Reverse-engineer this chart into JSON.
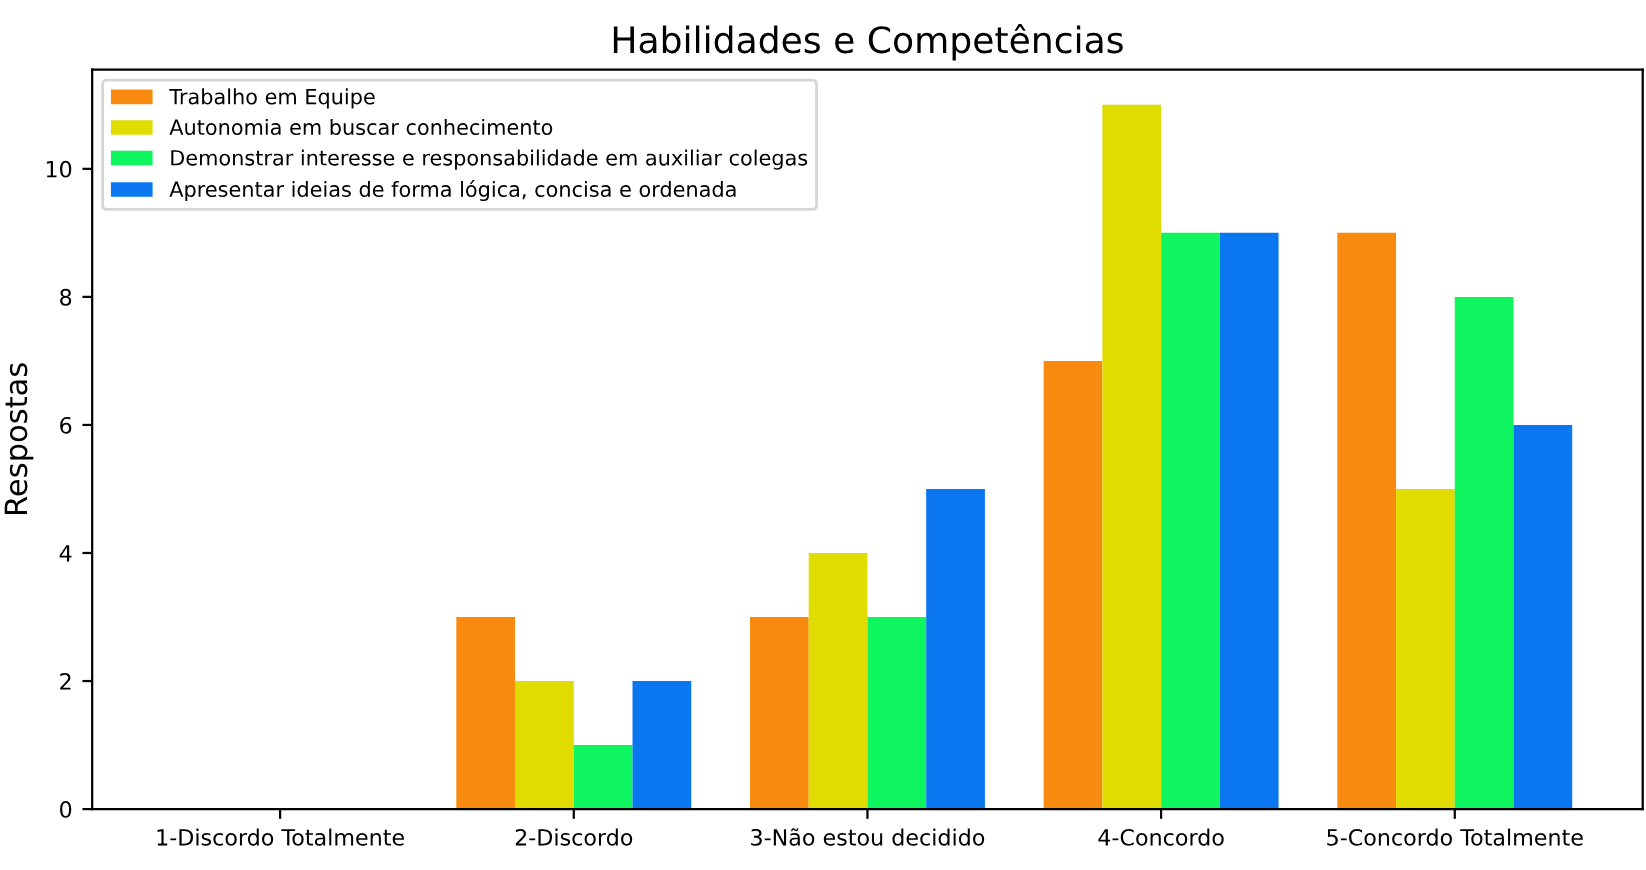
{
  "chart_data": {
    "type": "bar",
    "title": "Habilidades e Competências",
    "ylabel": "Respostas",
    "categories": [
      "1-Discordo Totalmente",
      "2-Discordo",
      "3-Não estou decidido",
      "4-Concordo",
      "5-Concordo Totalmente"
    ],
    "series": [
      {
        "name": "Trabalho em Equipe",
        "color": "#f78a0f",
        "values": [
          0,
          3,
          3,
          7,
          9
        ]
      },
      {
        "name": "Autonomia em buscar conhecimento",
        "color": "#e0dc00",
        "values": [
          0,
          2,
          4,
          11,
          5
        ]
      },
      {
        "name": "Demonstrar interesse e responsabilidade em auxiliar colegas",
        "color": "#0ef55f",
        "values": [
          0,
          1,
          3,
          9,
          8
        ]
      },
      {
        "name": "Apresentar ideias de forma lógica, concisa e ordenada",
        "color": "#0a76f0",
        "values": [
          0,
          2,
          5,
          9,
          6
        ]
      }
    ],
    "ylim": [
      0,
      11.55
    ],
    "yticks": [
      0,
      2,
      4,
      6,
      8,
      10
    ],
    "legend": "top left",
    "grid": false
  }
}
